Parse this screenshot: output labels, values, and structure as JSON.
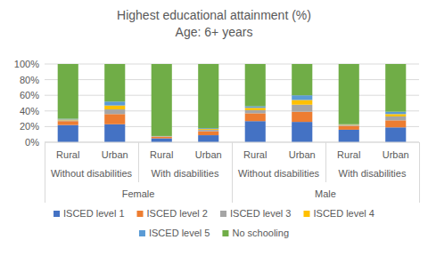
{
  "chart_data": {
    "type": "bar",
    "stacked": true,
    "title": "Highest educational attainment (%)",
    "subtitle": "Age: 6+ years",
    "categories": [
      "Rural",
      "Urban",
      "Rural",
      "Urban",
      "Rural",
      "Urban",
      "Rural",
      "Urban"
    ],
    "category_groups": [
      [
        "Without disabilities",
        "With disabilities",
        "Without disabilities",
        "With disabilities"
      ],
      [
        "Female",
        "Male"
      ]
    ],
    "series": [
      {
        "name": "ISCED level 1",
        "color": "#4472c4",
        "values": [
          22,
          23,
          5,
          9,
          27,
          26,
          16,
          19
        ]
      },
      {
        "name": "ISCED level 2",
        "color": "#ed7d31",
        "values": [
          5,
          13,
          2,
          5,
          10,
          13,
          5,
          9
        ]
      },
      {
        "name": "ISCED level 3",
        "color": "#a5a5a5",
        "values": [
          1,
          6,
          0.5,
          2,
          4,
          9,
          1,
          5
        ]
      },
      {
        "name": "ISCED level 4",
        "color": "#ffc000",
        "values": [
          1,
          5,
          0.2,
          1,
          3,
          6,
          0.5,
          3
        ]
      },
      {
        "name": "ISCED level 5",
        "color": "#5b9bd5",
        "values": [
          1,
          5,
          0.3,
          1,
          2,
          6,
          0.5,
          3
        ]
      },
      {
        "name": "No schooling",
        "color": "#70ad47",
        "values": [
          70,
          48,
          92,
          82,
          54,
          40,
          77,
          61
        ]
      }
    ],
    "ylim": [
      0,
      100
    ],
    "yticks": [
      {
        "value": 0,
        "label": "0%"
      },
      {
        "value": 20,
        "label": "20%"
      },
      {
        "value": 40,
        "label": "40%"
      },
      {
        "value": 60,
        "label": "60%"
      },
      {
        "value": 80,
        "label": "80%"
      },
      {
        "value": 100,
        "label": "100%"
      }
    ],
    "grid": true,
    "legend": "bottom"
  }
}
